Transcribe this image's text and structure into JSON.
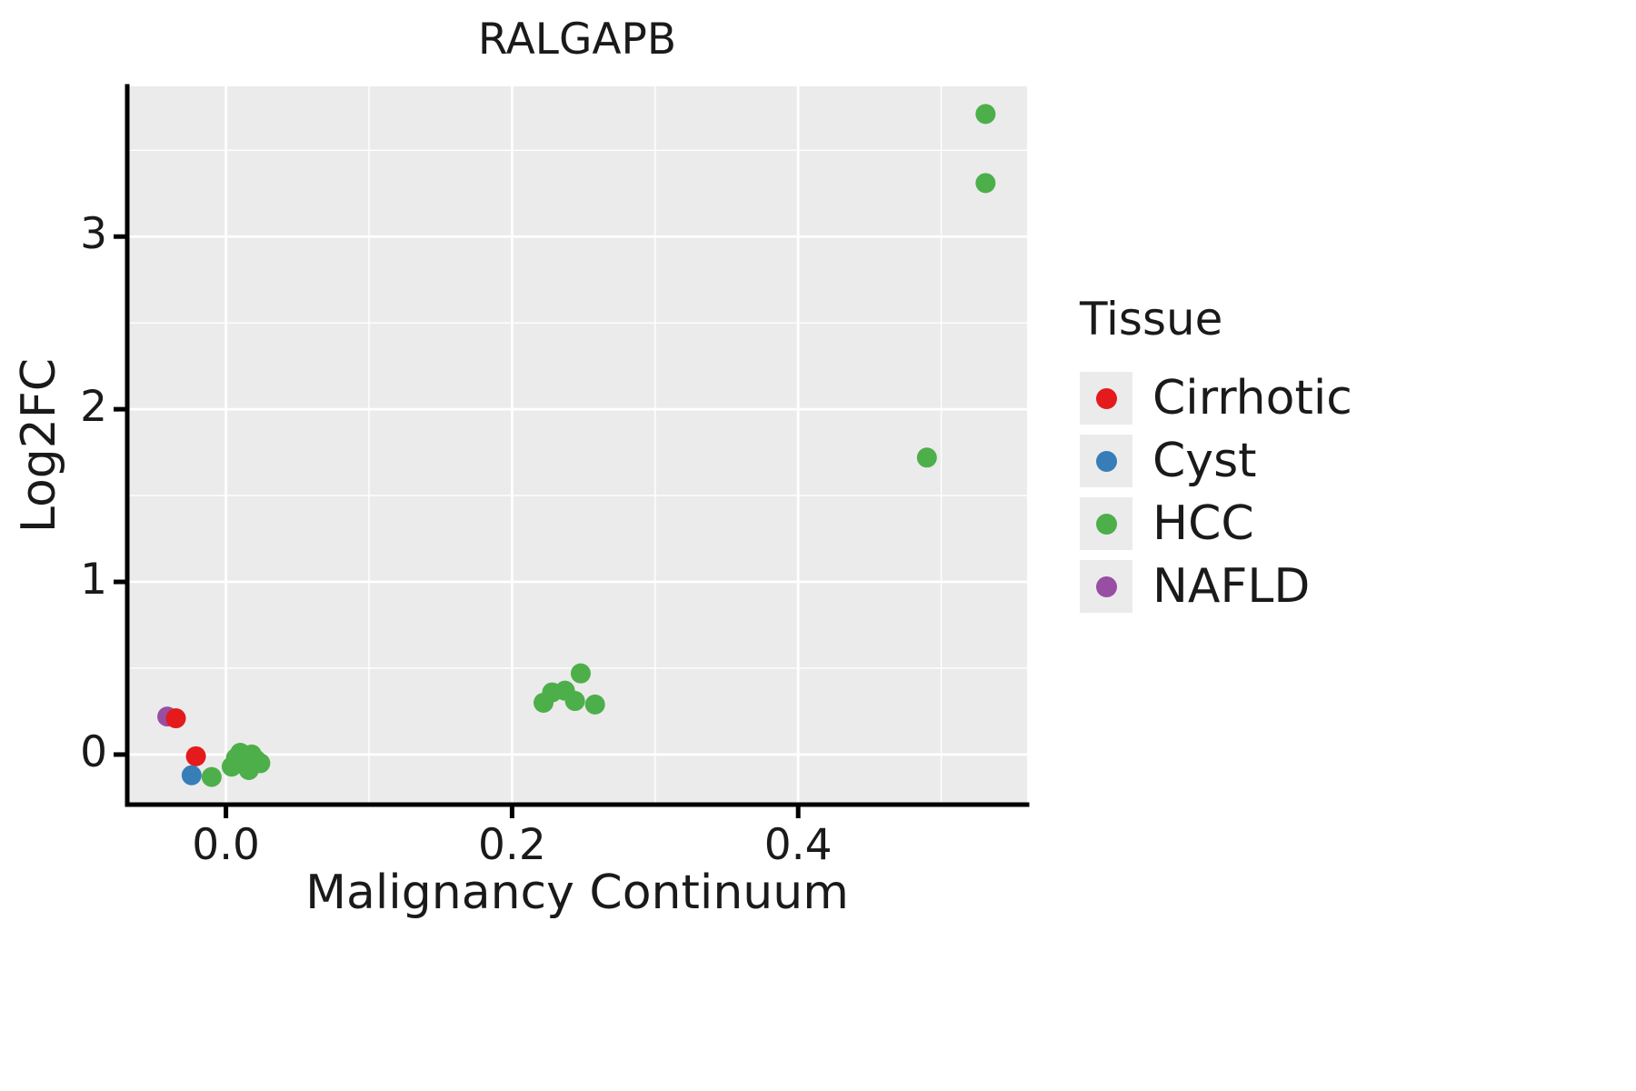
{
  "title": "RALGAPB",
  "axes": {
    "x_label": "Malignancy Continuum",
    "y_label": "Log2FC",
    "x_ticks": [
      {
        "value": 0.0,
        "label": "0.0"
      },
      {
        "value": 0.2,
        "label": "0.2"
      },
      {
        "value": 0.4,
        "label": "0.4"
      }
    ],
    "y_ticks": [
      {
        "value": 0,
        "label": "0"
      },
      {
        "value": 1,
        "label": "1"
      },
      {
        "value": 2,
        "label": "2"
      },
      {
        "value": 3,
        "label": "3"
      }
    ]
  },
  "legend": {
    "title": "Tissue",
    "entries": [
      {
        "label": "Cirrhotic",
        "color": "#e41a1c"
      },
      {
        "label": "Cyst",
        "color": "#377eb8"
      },
      {
        "label": "HCC",
        "color": "#4daf4a"
      },
      {
        "label": "NAFLD",
        "color": "#984ea3"
      }
    ]
  },
  "chart_data": {
    "type": "scatter",
    "title": "RALGAPB",
    "xlabel": "Malignancy Continuum",
    "ylabel": "Log2FC",
    "xlim": [
      -0.069,
      0.56
    ],
    "ylim": [
      -0.29,
      3.87
    ],
    "grid": true,
    "panel_background": "#ebebeb",
    "grid_color": "#ffffff",
    "legend_position": "right",
    "point_radius": 11,
    "series": [
      {
        "name": "NAFLD",
        "color": "#984ea3",
        "points": [
          [
            -0.041,
            0.22
          ]
        ]
      },
      {
        "name": "Cirrhotic",
        "color": "#e41a1c",
        "points": [
          [
            -0.035,
            0.21
          ],
          [
            -0.021,
            -0.01
          ]
        ]
      },
      {
        "name": "Cyst",
        "color": "#377eb8",
        "points": [
          [
            -0.024,
            -0.12
          ]
        ]
      },
      {
        "name": "HCC",
        "color": "#4daf4a",
        "points": [
          [
            -0.01,
            -0.13
          ],
          [
            0.004,
            -0.07
          ],
          [
            0.007,
            -0.02
          ],
          [
            0.01,
            0.01
          ],
          [
            0.013,
            -0.06
          ],
          [
            0.016,
            -0.09
          ],
          [
            0.018,
            0.0
          ],
          [
            0.021,
            -0.03
          ],
          [
            0.024,
            -0.05
          ],
          [
            0.222,
            0.3
          ],
          [
            0.228,
            0.36
          ],
          [
            0.237,
            0.37
          ],
          [
            0.244,
            0.31
          ],
          [
            0.248,
            0.47
          ],
          [
            0.258,
            0.29
          ],
          [
            0.49,
            1.72
          ],
          [
            0.531,
            3.31
          ],
          [
            0.531,
            3.71
          ]
        ]
      }
    ]
  }
}
